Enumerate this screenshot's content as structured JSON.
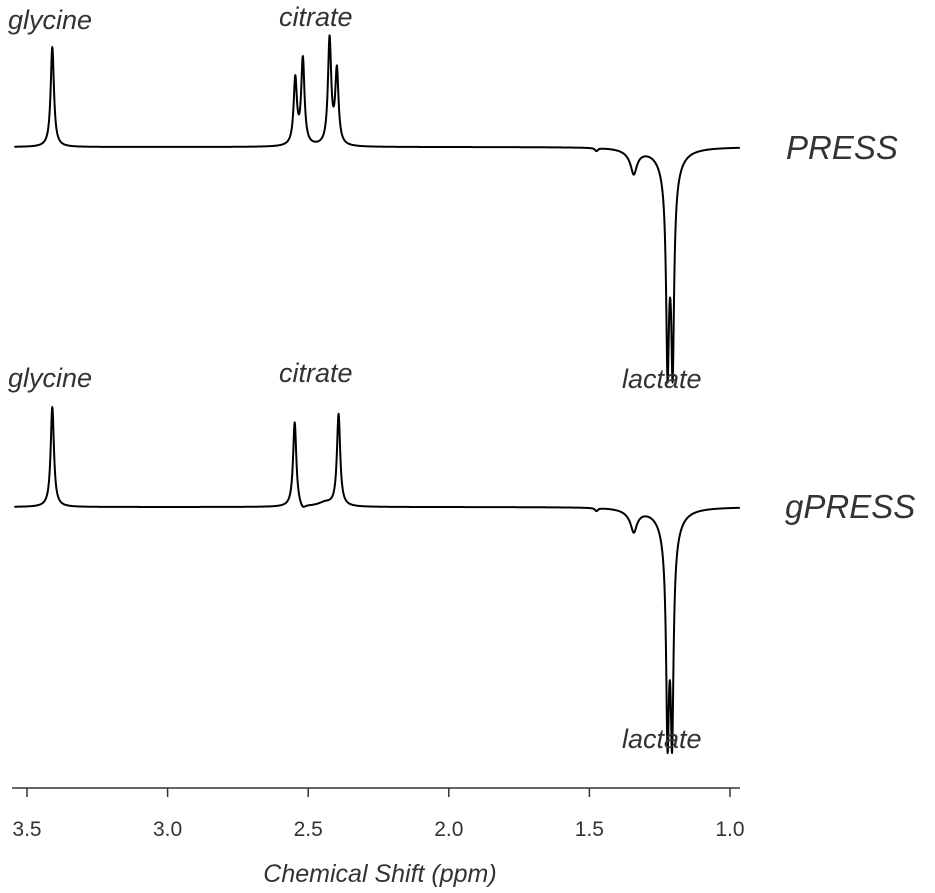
{
  "chart_data": {
    "type": "line",
    "title": "",
    "xlabel": "Chemical Shift (ppm)",
    "ylabel": "",
    "xlim": [
      3.55,
      0.96
    ],
    "x_reversed": true,
    "xticks": [
      3.5,
      3.0,
      2.5,
      2.0,
      1.5,
      1.0
    ],
    "xtick_labels": [
      "3.5",
      "3.0",
      "2.5",
      "2.0",
      "1.5",
      "1.0"
    ],
    "grid": false,
    "legend": "none",
    "line_color": "#000000",
    "text_color": "#333333",
    "spectra": [
      {
        "name": "PRESS",
        "y_unit": "relative intensity",
        "peaks": [
          {
            "x": 3.41,
            "amp": 1.0,
            "width": 0.007
          },
          {
            "x": 2.546,
            "amp": 0.66,
            "width": 0.007
          },
          {
            "x": 2.519,
            "amp": 0.86,
            "width": 0.007
          },
          {
            "x": 2.424,
            "amp": 1.06,
            "width": 0.007
          },
          {
            "x": 2.398,
            "amp": 0.74,
            "width": 0.007
          },
          {
            "x": 1.475,
            "amp": -0.03,
            "width": 0.006
          },
          {
            "x": 1.342,
            "amp": -0.18,
            "width": 0.012
          },
          {
            "x": 1.345,
            "amp": -0.07,
            "width": 0.03
          },
          {
            "x": 1.222,
            "amp": -1.82,
            "width": 0.006
          },
          {
            "x": 1.204,
            "amp": -1.82,
            "width": 0.006
          },
          {
            "x": 1.213,
            "amp": -0.38,
            "width": 0.03
          }
        ],
        "annotations": [
          {
            "text": "glycine"
          },
          {
            "text": "citrate"
          }
        ]
      },
      {
        "name": "gPRESS",
        "y_unit": "relative intensity",
        "peaks": [
          {
            "x": 3.41,
            "amp": 1.0,
            "width": 0.007
          },
          {
            "x": 2.548,
            "amp": 0.85,
            "width": 0.007
          },
          {
            "x": 2.52,
            "amp": -0.05,
            "width": 0.012
          },
          {
            "x": 2.44,
            "amp": 0.04,
            "width": 0.03
          },
          {
            "x": 2.392,
            "amp": 0.92,
            "width": 0.007
          },
          {
            "x": 1.475,
            "amp": -0.03,
            "width": 0.006
          },
          {
            "x": 1.342,
            "amp": -0.16,
            "width": 0.012
          },
          {
            "x": 1.345,
            "amp": -0.07,
            "width": 0.03
          },
          {
            "x": 1.222,
            "amp": -1.87,
            "width": 0.006
          },
          {
            "x": 1.206,
            "amp": -1.87,
            "width": 0.006
          },
          {
            "x": 1.214,
            "amp": -0.38,
            "width": 0.03
          }
        ],
        "annotations": [
          {
            "text": "glycine"
          },
          {
            "text": "citrate"
          },
          {
            "text": "lactate"
          },
          {
            "text": "lactate"
          }
        ]
      }
    ]
  }
}
